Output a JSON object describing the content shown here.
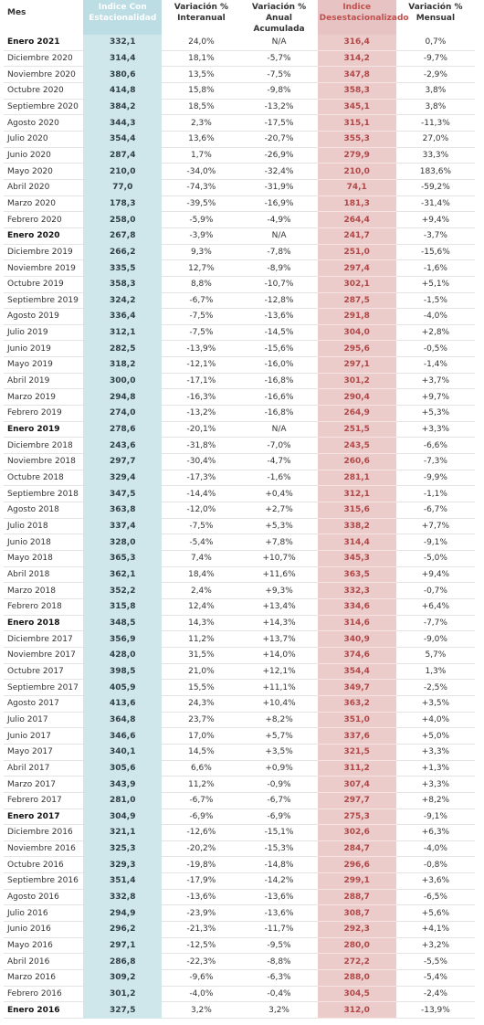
{
  "table": {
    "headers": [
      "Mes",
      "Indice Con Estacionalidad",
      "Variación % Interanual",
      "Variación % Anual Acumulada",
      "Indice Desestacionalizado",
      "Variación % Mensual"
    ],
    "rows": [
      [
        "Enero 2021",
        "332,1",
        "24,0%",
        "N/A",
        "316,4",
        "0,7%"
      ],
      [
        "Diciembre 2020",
        "314,4",
        "18,1%",
        "-5,7%",
        "314,2",
        "-9,7%"
      ],
      [
        "Noviembre 2020",
        "380,6",
        "13,5%",
        "-7,5%",
        "347,8",
        "-2,9%"
      ],
      [
        "Octubre 2020",
        "414,8",
        "15,8%",
        "-9,8%",
        "358,3",
        "3,8%"
      ],
      [
        "Septiembre 2020",
        "384,2",
        "18,5%",
        "-13,2%",
        "345,1",
        "3,8%"
      ],
      [
        "Agosto 2020",
        "344,3",
        "2,3%",
        "-17,5%",
        "315,1",
        "-11,3%"
      ],
      [
        "Julio 2020",
        "354,4",
        "13,6%",
        "-20,7%",
        "355,3",
        "27,0%"
      ],
      [
        "Junio 2020",
        "287,4",
        "1,7%",
        "-26,9%",
        "279,9",
        "33,3%"
      ],
      [
        "Mayo 2020",
        "210,0",
        "-34,0%",
        "-32,4%",
        "210,0",
        "183,6%"
      ],
      [
        "Abril 2020",
        "77,0",
        "-74,3%",
        "-31,9%",
        "74,1",
        "-59,2%"
      ],
      [
        "Marzo 2020",
        "178,3",
        "-39,5%",
        "-16,9%",
        "181,3",
        "-31,4%"
      ],
      [
        "Febrero 2020",
        "258,0",
        "-5,9%",
        "-4,9%",
        "264,4",
        "+9,4%"
      ],
      [
        "Enero 2020",
        "267,8",
        "-3,9%",
        "N/A",
        "241,7",
        "-3,7%"
      ],
      [
        "Diciembre 2019",
        "266,2",
        "9,3%",
        "-7,8%",
        "251,0",
        "-15,6%"
      ],
      [
        "Noviembre 2019",
        "335,5",
        "12,7%",
        "-8,9%",
        "297,4",
        "-1,6%"
      ],
      [
        "Octubre 2019",
        "358,3",
        "8,8%",
        "-10,7%",
        "302,1",
        "+5,1%"
      ],
      [
        "Septiembre 2019",
        "324,2",
        "-6,7%",
        "-12,8%",
        "287,5",
        "-1,5%"
      ],
      [
        "Agosto 2019",
        "336,4",
        "-7,5%",
        "-13,6%",
        "291,8",
        "-4,0%"
      ],
      [
        "Julio 2019",
        "312,1",
        "-7,5%",
        "-14,5%",
        "304,0",
        "+2,8%"
      ],
      [
        "Junio 2019",
        "282,5",
        "-13,9%",
        "-15,6%",
        "295,6",
        "-0,5%"
      ],
      [
        "Mayo 2019",
        "318,2",
        "-12,1%",
        "-16,0%",
        "297,1",
        "-1,4%"
      ],
      [
        "Abril 2019",
        "300,0",
        "-17,1%",
        "-16,8%",
        "301,2",
        "+3,7%"
      ],
      [
        "Marzo 2019",
        "294,8",
        "-16,3%",
        "-16,6%",
        "290,4",
        "+9,7%"
      ],
      [
        "Febrero 2019",
        "274,0",
        "-13,2%",
        "-16,8%",
        "264,9",
        "+5,3%"
      ],
      [
        "Enero 2019",
        "278,6",
        "-20,1%",
        "N/A",
        "251,5",
        "+3,3%"
      ],
      [
        "Diciembre 2018",
        "243,6",
        "-31,8%",
        "-7,0%",
        "243,5",
        "-6,6%"
      ],
      [
        "Noviembre 2018",
        "297,7",
        "-30,4%",
        "-4,7%",
        "260,6",
        "-7,3%"
      ],
      [
        "Octubre 2018",
        "329,4",
        "-17,3%",
        "-1,6%",
        "281,1",
        "-9,9%"
      ],
      [
        "Septiembre 2018",
        "347,5",
        "-14,4%",
        "+0,4%",
        "312,1",
        "-1,1%"
      ],
      [
        "Agosto 2018",
        "363,8",
        "-12,0%",
        "+2,7%",
        "315,6",
        "-6,7%"
      ],
      [
        "Julio 2018",
        "337,4",
        "-7,5%",
        "+5,3%",
        "338,2",
        "+7,7%"
      ],
      [
        "Junio 2018",
        "328,0",
        "-5,4%",
        "+7,8%",
        "314,4",
        "-9,1%"
      ],
      [
        "Mayo 2018",
        "365,3",
        "7,4%",
        "+10,7%",
        "345,3",
        "-5,0%"
      ],
      [
        "Abril 2018",
        "362,1",
        "18,4%",
        "+11,6%",
        "363,5",
        "+9,4%"
      ],
      [
        "Marzo 2018",
        "352,2",
        "2,4%",
        "+9,3%",
        "332,3",
        "-0,7%"
      ],
      [
        "Febrero 2018",
        "315,8",
        "12,4%",
        "+13,4%",
        "334,6",
        "+6,4%"
      ],
      [
        "Enero 2018",
        "348,5",
        "14,3%",
        "+14,3%",
        "314,6",
        "-7,7%"
      ],
      [
        "Diciembre 2017",
        "356,9",
        "11,2%",
        "+13,7%",
        "340,9",
        "-9,0%"
      ],
      [
        "Noviembre 2017",
        "428,0",
        "31,5%",
        "+14,0%",
        "374,6",
        "5,7%"
      ],
      [
        "Octubre 2017",
        "398,5",
        "21,0%",
        "+12,1%",
        "354,4",
        "1,3%"
      ],
      [
        "Septiembre 2017",
        "405,9",
        "15,5%",
        "+11,1%",
        "349,7",
        "-2,5%"
      ],
      [
        "Agosto 2017",
        "413,6",
        "24,3%",
        "+10,4%",
        "363,2",
        "+3,5%"
      ],
      [
        "Julio 2017",
        "364,8",
        "23,7%",
        "+8,2%",
        "351,0",
        "+4,0%"
      ],
      [
        "Junio 2017",
        "346,6",
        "17,0%",
        "+5,7%",
        "337,6",
        "+5,0%"
      ],
      [
        "Mayo 2017",
        "340,1",
        "14,5%",
        "+3,5%",
        "321,5",
        "+3,3%"
      ],
      [
        "Abril 2017",
        "305,6",
        "6,6%",
        "+0,9%",
        "311,2",
        "+1,3%"
      ],
      [
        "Marzo 2017",
        "343,9",
        "11,2%",
        "-0,9%",
        "307,4",
        "+3,3%"
      ],
      [
        "Febrero 2017",
        "281,0",
        "-6,7%",
        "-6,7%",
        "297,7",
        "+8,2%"
      ],
      [
        "Enero 2017",
        "304,9",
        "-6,9%",
        "-6,9%",
        "275,3",
        "-9,1%"
      ],
      [
        "Diciembre 2016",
        "321,1",
        "-12,6%",
        "-15,1%",
        "302,6",
        "+6,3%"
      ],
      [
        "Noviembre 2016",
        "325,3",
        "-20,2%",
        "-15,3%",
        "284,7",
        "-4,0%"
      ],
      [
        "Octubre 2016",
        "329,3",
        "-19,8%",
        "-14,8%",
        "296,6",
        "-0,8%"
      ],
      [
        "Septiembre 2016",
        "351,4",
        "-17,9%",
        "-14,2%",
        "299,1",
        "+3,6%"
      ],
      [
        "Agosto 2016",
        "332,8",
        "-13,6%",
        "-13,6%",
        "288,7",
        "-6,5%"
      ],
      [
        "Julio 2016",
        "294,9",
        "-23,9%",
        "-13,6%",
        "308,7",
        "+5,6%"
      ],
      [
        "Junio 2016",
        "296,2",
        "-21,3%",
        "-11,7%",
        "292,3",
        "+4,1%"
      ],
      [
        "Mayo 2016",
        "297,1",
        "-12,5%",
        "-9,5%",
        "280,0",
        "+3,2%"
      ],
      [
        "Abril 2016",
        "286,8",
        "-22,3%",
        "-8,8%",
        "272,2",
        "-5,5%"
      ],
      [
        "Marzo 2016",
        "309,2",
        "-9,6%",
        "-6,3%",
        "288,0",
        "-5,4%"
      ],
      [
        "Febrero 2016",
        "301,2",
        "-4,0%",
        "-0,4%",
        "304,5",
        "-2,4%"
      ],
      [
        "Enero 2016",
        "327,5",
        "3,2%",
        "3,2%",
        "312,0",
        "-13,9%"
      ]
    ]
  }
}
